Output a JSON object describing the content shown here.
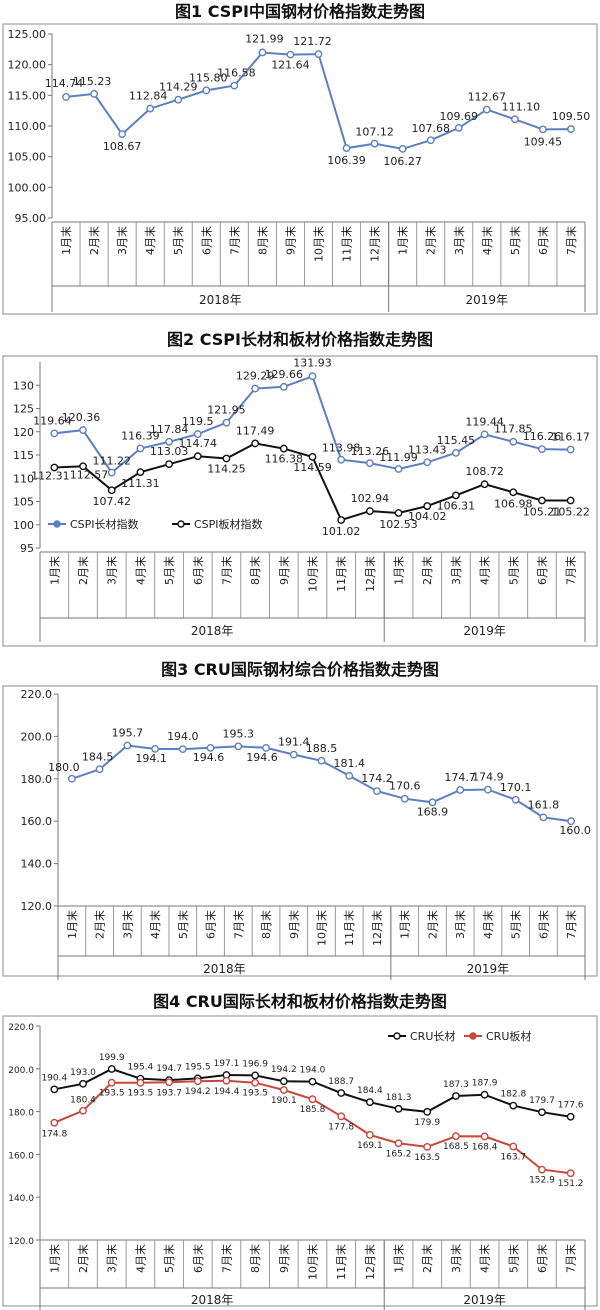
{
  "charts": [
    {
      "title": "图1 CSPI中国钢材价格指数走势图"
    },
    {
      "title": "图2 CSPI长材和板材价格指数走势图"
    },
    {
      "title": "图3 CRU国际钢材综合价格指数走势图"
    },
    {
      "title": "图4 CRU国际长材和板材价格指数走势图"
    }
  ],
  "chart_data": [
    {
      "type": "line",
      "title": "图1 CSPI中国钢材价格指数走势图",
      "categories": [
        "1月末",
        "2月末",
        "3月末",
        "4月末",
        "5月末",
        "6月末",
        "7月末",
        "8月末",
        "9月末",
        "10月末",
        "11月末",
        "12月末",
        "1月末",
        "2月末",
        "3月末",
        "4月末",
        "5月末",
        "6月末",
        "7月末"
      ],
      "groups": [
        {
          "label": "2018年",
          "from": 0,
          "to": 11
        },
        {
          "label": "2019年",
          "from": 12,
          "to": 18
        }
      ],
      "series": [
        {
          "name": "",
          "color": "#5b7fbf",
          "values": [
            114.74,
            115.23,
            108.67,
            112.84,
            114.29,
            115.8,
            116.58,
            121.99,
            121.64,
            121.72,
            106.39,
            107.12,
            106.27,
            107.68,
            109.69,
            112.67,
            111.1,
            109.45,
            109.5
          ],
          "labels": [
            "114.74",
            "115.23",
            "108.67",
            "112.84",
            "114.29",
            "115.80",
            "116.58",
            "121.99",
            "121.64",
            "121.72",
            "106.39",
            "107.12",
            "106.27",
            "107.68",
            "109.69",
            "112.67",
            "111.10",
            "109.45",
            "109.50"
          ]
        }
      ],
      "ylim": [
        95,
        125
      ],
      "ystep": 5,
      "ytick_labels": [
        "95.00",
        "100.00",
        "105.00",
        "110.00",
        "115.00",
        "120.00",
        "125.00"
      ],
      "grid": false,
      "legend": "none"
    },
    {
      "type": "line",
      "title": "图2 CSPI长材和板材价格指数走势图",
      "categories": [
        "1月末",
        "2月末",
        "3月末",
        "4月末",
        "5月末",
        "6月末",
        "7月末",
        "8月末",
        "9月末",
        "10月末",
        "11月末",
        "12月末",
        "1月末",
        "2月末",
        "3月末",
        "4月末",
        "5月末",
        "6月末",
        "7月末"
      ],
      "groups": [
        {
          "label": "2018年",
          "from": 0,
          "to": 11
        },
        {
          "label": "2019年",
          "from": 12,
          "to": 18
        }
      ],
      "series": [
        {
          "name": "CSPI长材指数",
          "color": "#5b7fbf",
          "values": [
            119.64,
            120.36,
            111.22,
            116.39,
            117.84,
            119.5,
            121.95,
            129.29,
            129.66,
            131.93,
            113.98,
            113.26,
            111.99,
            113.43,
            115.45,
            119.44,
            117.85,
            116.26,
            116.17
          ],
          "labels": [
            "119.64",
            "120.36",
            "111.22",
            "116.39",
            "117.84",
            "119.5",
            "121.95",
            "129.29",
            "129.66",
            "131.93",
            "113.98",
            "113.26",
            "111.99",
            "113.43",
            "115.45",
            "119.44",
            "117.85",
            "116.26",
            "116.17"
          ]
        },
        {
          "name": "CSPI板材指数",
          "color": "#111111",
          "values": [
            112.31,
            112.57,
            107.42,
            111.31,
            113.03,
            114.74,
            114.25,
            117.49,
            116.38,
            114.59,
            101.02,
            102.94,
            102.53,
            104.02,
            106.31,
            108.72,
            106.98,
            105.21,
            105.22
          ],
          "labels": [
            "112.31",
            "112.57",
            "107.42",
            "111.31",
            "113.03",
            "114.74",
            "114.25",
            "117.49",
            "116.38",
            "114.59",
            "101.02",
            "102.94",
            "102.53",
            "104.02",
            "106.31",
            "108.72",
            "106.98",
            "105.21",
            "105.22"
          ]
        }
      ],
      "ylim": [
        95,
        135
      ],
      "ystep": 5,
      "ytick_labels": [
        "95",
        "100",
        "105",
        "110",
        "115",
        "120",
        "125",
        "130"
      ],
      "grid": false,
      "legend": "bottom-left"
    },
    {
      "type": "line",
      "title": "图3 CRU国际钢材综合价格指数走势图",
      "categories": [
        "1月末",
        "2月末",
        "3月末",
        "4月末",
        "5月末",
        "6月末",
        "7月末",
        "8月末",
        "9月末",
        "10月末",
        "11月末",
        "12月末",
        "1月末",
        "2月末",
        "3月末",
        "4月末",
        "5月末",
        "6月末",
        "7月末"
      ],
      "groups": [
        {
          "label": "2018年",
          "from": 0,
          "to": 11
        },
        {
          "label": "2019年",
          "from": 12,
          "to": 18
        }
      ],
      "series": [
        {
          "name": "",
          "color": "#5b7fbf",
          "values": [
            180.0,
            184.5,
            195.7,
            194.1,
            194.0,
            194.6,
            195.3,
            194.6,
            191.4,
            188.5,
            181.4,
            174.2,
            170.6,
            168.9,
            174.7,
            174.9,
            170.1,
            161.8,
            160.0
          ],
          "labels": [
            "180.0",
            "184.5",
            "195.7",
            "194.1",
            "194.0",
            "194.6",
            "195.3",
            "194.6",
            "191.4",
            "188.5",
            "181.4",
            "174.2",
            "170.6",
            "168.9",
            "174.7",
            "174.9",
            "170.1",
            "161.8",
            "160.0"
          ]
        }
      ],
      "ylim": [
        120,
        220
      ],
      "ystep": 20,
      "ytick_labels": [
        "120.0",
        "140.0",
        "160.0",
        "180.0",
        "200.0",
        "220.0"
      ],
      "grid": false,
      "legend": "none"
    },
    {
      "type": "line",
      "title": "图4 CRU国际长材和板材价格指数走势图",
      "categories": [
        "1月末",
        "2月末",
        "3月末",
        "4月末",
        "5月末",
        "6月末",
        "7月末",
        "8月末",
        "9月末",
        "10月末",
        "11月末",
        "12月末",
        "1月末",
        "2月末",
        "3月末",
        "4月末",
        "5月末",
        "6月末",
        "7月末"
      ],
      "groups": [
        {
          "label": "2018年",
          "from": 0,
          "to": 11
        },
        {
          "label": "2019年",
          "from": 12,
          "to": 18
        }
      ],
      "series": [
        {
          "name": "CRU长材",
          "color": "#111111",
          "values": [
            190.4,
            193.0,
            199.9,
            195.4,
            194.7,
            195.5,
            197.1,
            196.9,
            194.2,
            194.0,
            188.7,
            184.4,
            181.3,
            179.9,
            187.3,
            187.9,
            182.8,
            179.7,
            177.6
          ],
          "labels": [
            "190.4",
            "193.0",
            "199.9",
            "195.4",
            "194.7",
            "195.5",
            "197.1",
            "196.9",
            "194.2",
            "194.0",
            "188.7",
            "184.4",
            "181.3",
            "179.9",
            "187.3",
            "187.9",
            "182.8",
            "179.7",
            "177.6"
          ]
        },
        {
          "name": "CRU板材",
          "color": "#c8463a",
          "values": [
            174.8,
            180.4,
            193.5,
            193.5,
            193.7,
            194.2,
            194.4,
            193.5,
            190.1,
            185.8,
            177.8,
            169.1,
            165.2,
            163.5,
            168.5,
            168.4,
            163.7,
            152.9,
            151.2
          ],
          "labels": [
            "174.8",
            "180.4",
            "193.5",
            "193.5",
            "193.7",
            "194.2",
            "194.4",
            "193.5",
            "190.1",
            "185.8",
            "177.8",
            "169.1",
            "165.2",
            "163.5",
            "168.5",
            "168.4",
            "163.7",
            "152.9",
            "151.2"
          ]
        }
      ],
      "ylim": [
        120,
        220
      ],
      "ystep": 20,
      "ytick_labels": [
        "120.0",
        "140.0",
        "160.0",
        "180.0",
        "200.0",
        "220.0"
      ],
      "grid": false,
      "legend": "top-right"
    }
  ]
}
